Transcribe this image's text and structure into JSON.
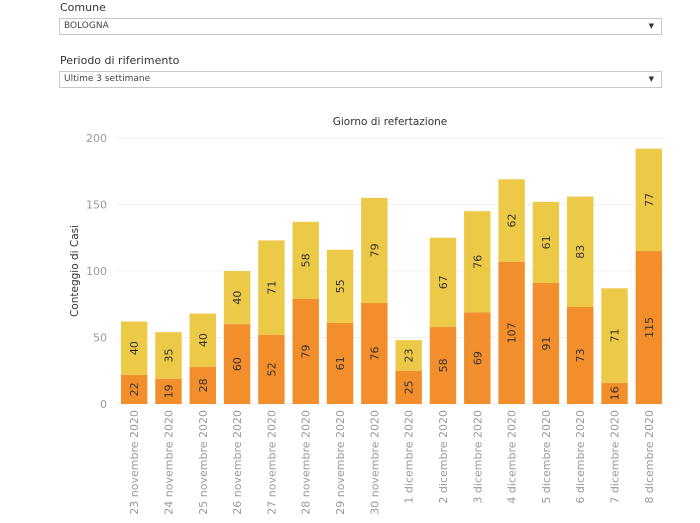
{
  "filters": {
    "comune": {
      "label": "Comune",
      "value": "BOLOGNA"
    },
    "periodo": {
      "label": "Periodo di riferimento",
      "value": "Ultime 3 settimane"
    }
  },
  "chart_data": {
    "type": "bar",
    "stacked": true,
    "title": "Giorno di refertazione",
    "xlabel": "",
    "ylabel": "Conteggio di Casi",
    "ylim": [
      0,
      200
    ],
    "yticks": [
      0,
      50,
      100,
      150,
      200
    ],
    "grid": true,
    "categories": [
      "23 novembre 2020",
      "24 novembre 2020",
      "25 novembre 2020",
      "26 novembre 2020",
      "27 novembre 2020",
      "28 novembre 2020",
      "29 novembre 2020",
      "30 novembre 2020",
      "1 dicembre 2020",
      "2 dicembre 2020",
      "3 dicembre 2020",
      "4 dicembre 2020",
      "5 dicembre 2020",
      "6 dicembre 2020",
      "7 dicembre 2020",
      "8 dicembre 2020"
    ],
    "series": [
      {
        "name": "bottom",
        "color": "#f28e2b",
        "values": [
          22,
          19,
          28,
          60,
          52,
          79,
          61,
          76,
          25,
          58,
          69,
          107,
          91,
          73,
          16,
          115
        ]
      },
      {
        "name": "top",
        "color": "#edc948",
        "values": [
          40,
          35,
          40,
          40,
          71,
          58,
          55,
          79,
          23,
          67,
          76,
          62,
          61,
          83,
          71,
          77
        ]
      }
    ]
  }
}
